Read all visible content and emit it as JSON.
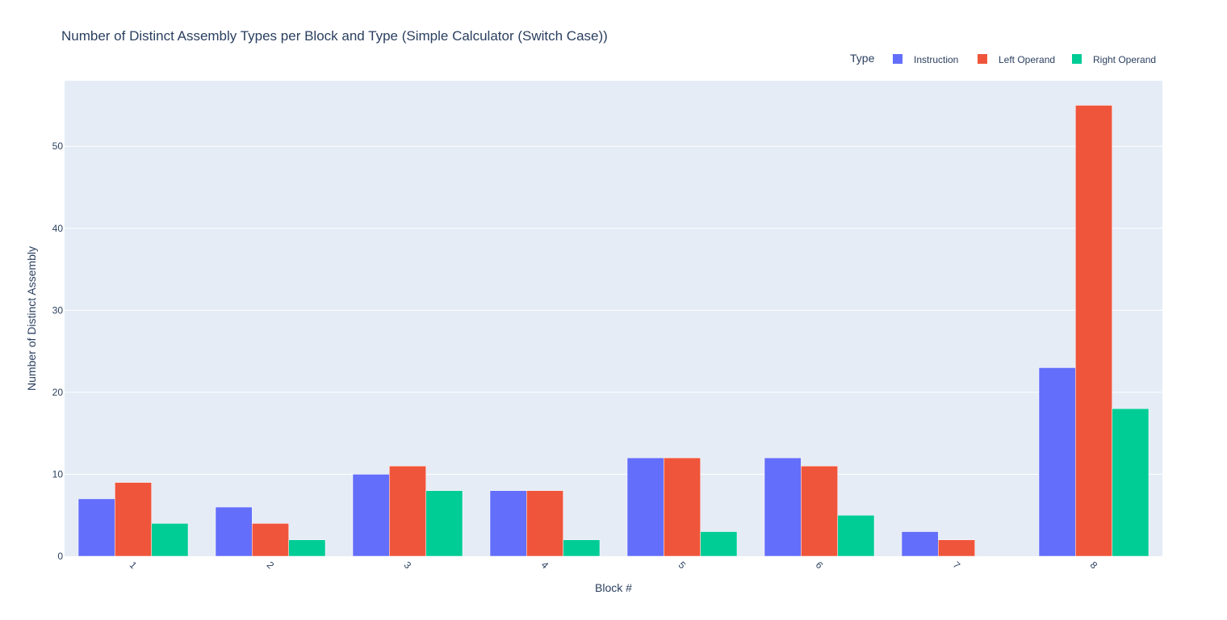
{
  "chart_data": {
    "type": "bar",
    "title": "Number of Distinct Assembly Types per Block and Type (Simple Calculator (Switch Case))",
    "xlabel": "Block #",
    "ylabel": "Number of Distinct Assembly",
    "categories": [
      "1",
      "2",
      "3",
      "4",
      "5",
      "6",
      "7",
      "8"
    ],
    "ylim": [
      0,
      58
    ],
    "yticks": [
      0,
      10,
      20,
      30,
      40,
      50
    ],
    "legend_title": "Type",
    "legend_position": "top-right",
    "grid": true,
    "series": [
      {
        "name": "Instruction",
        "color": "#636efa",
        "values": [
          7,
          6,
          10,
          8,
          12,
          12,
          3,
          23
        ]
      },
      {
        "name": "Left Operand",
        "color": "#ef553b",
        "values": [
          9,
          4,
          11,
          8,
          12,
          11,
          2,
          55
        ]
      },
      {
        "name": "Right Operand",
        "color": "#00cc96",
        "values": [
          4,
          2,
          8,
          2,
          3,
          5,
          0,
          18
        ]
      }
    ],
    "plot_bgcolor": "#e5ecf6",
    "gridcolor": "#ffffff"
  }
}
